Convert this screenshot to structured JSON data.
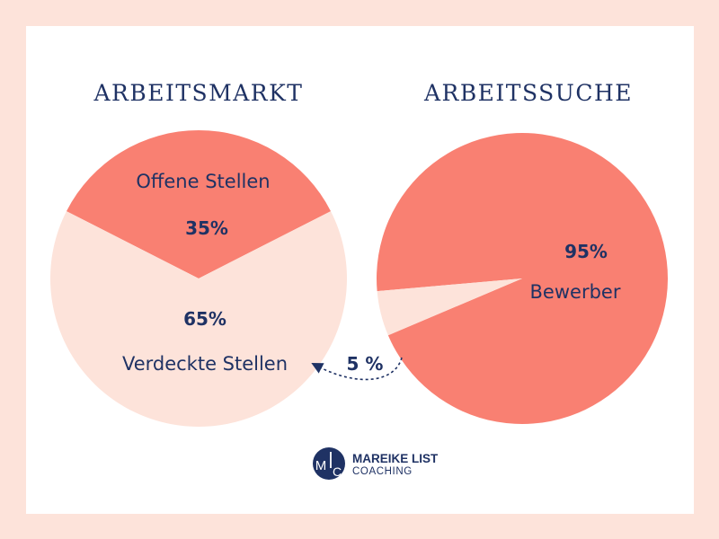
{
  "chart_data": [
    {
      "type": "pie",
      "title": "ARBEITSMARKT",
      "slices": [
        {
          "label": "Offene Stellen",
          "value": 35,
          "value_label": "35%",
          "color": "#f98072"
        },
        {
          "label": "Verdeckte Stellen",
          "value": 65,
          "value_label": "65%",
          "color": "#fde3da"
        }
      ]
    },
    {
      "type": "pie",
      "title": "ARBEITSSUCHE",
      "slices": [
        {
          "label": "Bewerber",
          "value": 95,
          "value_label": "95%",
          "color": "#f98072"
        },
        {
          "label": "",
          "value": 5,
          "value_label": "5 %",
          "color": "#fde3da"
        }
      ],
      "annotation": "dashed arrow from the 5 % slice to the Verdeckte Stellen label"
    }
  ],
  "logo": {
    "monogram": "MLC",
    "line1": "MAREIKE LIST",
    "line2": "COACHING",
    "color": "#1f3264"
  }
}
